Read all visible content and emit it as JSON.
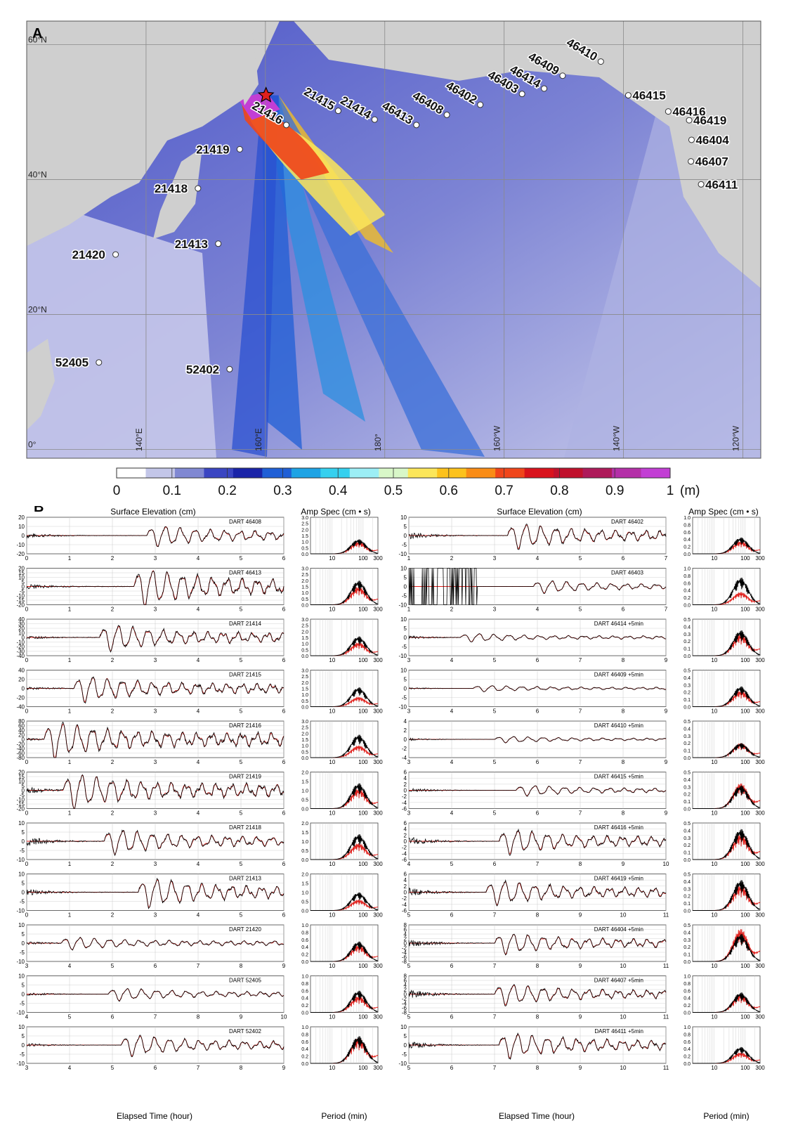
{
  "map": {
    "panel_label": "A",
    "lat_labels": [
      "60°N",
      "40°N",
      "20°N",
      "0°"
    ],
    "lon_labels": [
      "140°E",
      "160°E",
      "180°",
      "160°W",
      "140°W",
      "120°W"
    ],
    "stations": [
      {
        "id": "21415",
        "lon": 172.2,
        "lat": 50.2
      },
      {
        "id": "21414",
        "lon": 178.3,
        "lat": 48.9
      },
      {
        "id": "46413",
        "lon": -174.7,
        "lat": 48.1
      },
      {
        "id": "46408",
        "lon": -169.6,
        "lat": 49.6
      },
      {
        "id": "46402",
        "lon": -164.0,
        "lat": 51.1
      },
      {
        "id": "46403",
        "lon": -157.0,
        "lat": 52.7
      },
      {
        "id": "46414",
        "lon": -153.3,
        "lat": 53.5
      },
      {
        "id": "46409",
        "lon": -150.2,
        "lat": 55.4
      },
      {
        "id": "46410",
        "lon": -143.8,
        "lat": 57.5
      },
      {
        "id": "46415",
        "lon": -139.2,
        "lat": 52.5
      },
      {
        "id": "46416",
        "lon": -132.5,
        "lat": 50.1
      },
      {
        "id": "46419",
        "lon": -129.0,
        "lat": 48.8
      },
      {
        "id": "46404",
        "lon": -128.6,
        "lat": 45.9
      },
      {
        "id": "46407",
        "lon": -128.7,
        "lat": 42.7
      },
      {
        "id": "46411",
        "lon": -127.0,
        "lat": 39.3
      },
      {
        "id": "21416",
        "lon": 163.5,
        "lat": 48.1
      },
      {
        "id": "21419",
        "lon": 155.7,
        "lat": 44.5
      },
      {
        "id": "21418",
        "lon": 148.7,
        "lat": 38.7
      },
      {
        "id": "21413",
        "lon": 152.1,
        "lat": 30.5
      },
      {
        "id": "21420",
        "lon": 134.9,
        "lat": 28.9
      },
      {
        "id": "52405",
        "lon": 132.1,
        "lat": 12.9
      },
      {
        "id": "52402",
        "lon": 154.0,
        "lat": 11.9
      }
    ],
    "epicenter": {
      "lon": 160.1,
      "lat": 52.5,
      "label": "star-epicenter"
    },
    "colorbar": {
      "ticks": [
        "0",
        "0.1",
        "0.2",
        "0.3",
        "0.4",
        "0.5",
        "0.6",
        "0.7",
        "0.8",
        "0.9",
        "1"
      ],
      "unit": "(m)",
      "colors": [
        "#ffffff",
        "#c3c6e8",
        "#8088d2",
        "#3a45c2",
        "#1a24a8",
        "#1f5fd6",
        "#1ea3e4",
        "#35d0ef",
        "#9ceef5",
        "#d8f7c8",
        "#fbe65a",
        "#fcc21c",
        "#f98c16",
        "#f0451a",
        "#d9121c",
        "#c0102c",
        "#ae1a5a",
        "#b42fa8",
        "#c23ed4"
      ]
    }
  },
  "panel_b": {
    "label": "B",
    "headers": {
      "surface": "Surface Elevation (cm)",
      "ampspec": "Amp Spec (cm • s)",
      "xlabel_time": "Elapsed Time (hour)",
      "xlabel_period": "Period (min)"
    }
  },
  "chart_data": [
    {
      "type": "line",
      "column": "left",
      "station": "DART 46408",
      "xlim": [
        0,
        6
      ],
      "xticks": [
        0,
        1,
        2,
        3,
        4,
        5,
        6
      ],
      "ylim": [
        -20,
        20
      ],
      "yticks": [
        -20,
        -10,
        0,
        10,
        20
      ],
      "onset": 2.8,
      "amp": 10,
      "noise": 3,
      "arrival": 2.75,
      "spec": {
        "ylim": [
          0,
          3.0
        ],
        "yticks": [
          "0.0",
          "0.5",
          "1.0",
          "1.5",
          "2.0",
          "2.5",
          "3.0"
        ],
        "peak_obs": 1.2,
        "peak_model": 1.0
      }
    },
    {
      "type": "line",
      "column": "left",
      "station": "DART 46413",
      "xlim": [
        0,
        6
      ],
      "xticks": [
        0,
        1,
        2,
        3,
        4,
        5,
        6
      ],
      "ylim": [
        -20,
        20
      ],
      "yticks": [
        -20,
        -15,
        -10,
        -5,
        0,
        5,
        10,
        15,
        20
      ],
      "onset": 2.5,
      "amp": 18,
      "noise": 3,
      "arrival": 2.45,
      "spec": {
        "ylim": [
          0,
          3.0
        ],
        "yticks": [
          "0.0",
          "0.5",
          "1.0",
          "1.5",
          "2.0",
          "2.5",
          "3.0"
        ],
        "peak_obs": 2.0,
        "peak_model": 1.5
      }
    },
    {
      "type": "line",
      "column": "left",
      "station": "DART 21414",
      "xlim": [
        0,
        6
      ],
      "xticks": [
        0,
        1,
        2,
        3,
        4,
        5,
        6
      ],
      "ylim": [
        -40,
        40
      ],
      "yticks": [
        -40,
        -30,
        -20,
        -10,
        0,
        10,
        20,
        30,
        40
      ],
      "onset": 1.7,
      "amp": 25,
      "noise": 4,
      "arrival": 1.65,
      "spec": {
        "ylim": [
          0,
          3.0
        ],
        "yticks": [
          "0.0",
          "0.5",
          "1.0",
          "1.5",
          "2.0",
          "2.5",
          "3.0"
        ],
        "peak_obs": 1.6,
        "peak_model": 1.1
      }
    },
    {
      "type": "line",
      "column": "left",
      "station": "DART 21415",
      "xlim": [
        0,
        6
      ],
      "xticks": [
        0,
        1,
        2,
        3,
        4,
        5,
        6
      ],
      "ylim": [
        -40,
        40
      ],
      "yticks": [
        -40,
        -20,
        0,
        20,
        40
      ],
      "onset": 1.1,
      "amp": 25,
      "noise": 4,
      "arrival": 1.05,
      "spec": {
        "ylim": [
          0,
          3.0
        ],
        "yticks": [
          "0.0",
          "0.5",
          "1.0",
          "1.5",
          "2.0",
          "2.5",
          "3.0"
        ],
        "peak_obs": 1.6,
        "peak_model": 0.8
      }
    },
    {
      "type": "line",
      "column": "left",
      "station": "DART 21416",
      "xlim": [
        0,
        6
      ],
      "xticks": [
        0,
        1,
        2,
        3,
        4,
        5,
        6
      ],
      "ylim": [
        -80,
        80
      ],
      "yticks": [
        -80,
        -60,
        -40,
        -20,
        0,
        20,
        40,
        60,
        80
      ],
      "onset": 0.4,
      "amp": 70,
      "noise": 5,
      "arrival": 0.35,
      "spec": {
        "ylim": [
          0,
          3.0
        ],
        "yticks": [
          "0.0",
          "0.5",
          "1.0",
          "1.5",
          "2.0",
          "2.5",
          "3.0"
        ],
        "peak_obs": 1.9,
        "peak_model": 1.0
      }
    },
    {
      "type": "line",
      "column": "left",
      "station": "DART 21419",
      "xlim": [
        0,
        6
      ],
      "xticks": [
        0,
        1,
        2,
        3,
        4,
        5,
        6
      ],
      "ylim": [
        -20,
        20
      ],
      "yticks": [
        -20,
        -15,
        -10,
        -5,
        0,
        5,
        10,
        15,
        20
      ],
      "onset": 0.85,
      "amp": 17,
      "noise": 4,
      "arrival": 0.8,
      "spec": {
        "ylim": [
          0,
          2.0
        ],
        "yticks": [
          "0.0",
          "0.5",
          "1.0",
          "1.5",
          "2.0"
        ],
        "peak_obs": 1.4,
        "peak_model": 1.1
      }
    },
    {
      "type": "line",
      "column": "left",
      "station": "DART 21418",
      "xlim": [
        0,
        6
      ],
      "xticks": [
        0,
        1,
        2,
        3,
        4,
        5,
        6
      ],
      "ylim": [
        -10,
        10
      ],
      "yticks": [
        -10,
        -5,
        0,
        5,
        10
      ],
      "onset": 1.8,
      "amp": 6,
      "noise": 3,
      "arrival": 1.75,
      "spec": {
        "ylim": [
          0,
          2.0
        ],
        "yticks": [
          "0.0",
          "0.5",
          "1.0",
          "1.5",
          "2.0"
        ],
        "peak_obs": 1.4,
        "peak_model": 0.9
      }
    },
    {
      "type": "line",
      "column": "left",
      "station": "DART 21413",
      "xlim": [
        0,
        6
      ],
      "xticks": [
        0,
        1,
        2,
        3,
        4,
        5,
        6
      ],
      "ylim": [
        -10,
        10
      ],
      "yticks": [
        -10,
        -5,
        0,
        5,
        10
      ],
      "onset": 2.6,
      "amp": 7,
      "noise": 2,
      "arrival": 2.55,
      "spec": {
        "ylim": [
          0,
          2.0
        ],
        "yticks": [
          "0.0",
          "0.5",
          "1.0",
          "1.5",
          "2.0"
        ],
        "peak_obs": 1.0,
        "peak_model": 0.6
      }
    },
    {
      "type": "line",
      "column": "left",
      "station": "DART 21420",
      "xlim": [
        3,
        9
      ],
      "xticks": [
        3,
        4,
        5,
        6,
        7,
        8,
        9
      ],
      "ylim": [
        -10,
        10
      ],
      "yticks": [
        -10,
        -5,
        0,
        5,
        10
      ],
      "onset": 3.8,
      "amp": 3,
      "noise": 1,
      "arrival": 3.75,
      "spec": {
        "ylim": [
          0,
          1.0
        ],
        "yticks": [
          "0.0",
          "0.2",
          "0.4",
          "0.6",
          "0.8",
          "1.0"
        ],
        "peak_obs": 0.55,
        "peak_model": 0.45
      }
    },
    {
      "type": "line",
      "column": "left",
      "station": "DART 52405",
      "xlim": [
        4,
        10
      ],
      "xticks": [
        4,
        5,
        6,
        7,
        8,
        9,
        10
      ],
      "ylim": [
        -10,
        10
      ],
      "yticks": [
        -10,
        -5,
        0,
        5,
        10
      ],
      "onset": 5.9,
      "amp": 3,
      "noise": 1,
      "arrival": 5.85,
      "spec": {
        "ylim": [
          0,
          1.0
        ],
        "yticks": [
          "0.0",
          "0.2",
          "0.4",
          "0.6",
          "0.8",
          "1.0"
        ],
        "peak_obs": 0.6,
        "peak_model": 0.45
      }
    },
    {
      "type": "line",
      "column": "left",
      "station": "DART 52402",
      "xlim": [
        3,
        9
      ],
      "xticks": [
        3,
        4,
        5,
        6,
        7,
        8,
        9
      ],
      "ylim": [
        -10,
        10
      ],
      "yticks": [
        -10,
        -5,
        0,
        5,
        10
      ],
      "onset": 5.2,
      "amp": 5,
      "noise": 1,
      "arrival": 5.15,
      "spec": {
        "ylim": [
          0,
          1.0
        ],
        "yticks": [
          "0.0",
          "0.2",
          "0.4",
          "0.6",
          "0.8",
          "1.0"
        ],
        "peak_obs": 0.75,
        "peak_model": 0.7
      }
    },
    {
      "type": "line",
      "column": "right",
      "station": "DART 46402",
      "xlim": [
        1,
        7
      ],
      "xticks": [
        1,
        2,
        3,
        4,
        5,
        6,
        7
      ],
      "ylim": [
        -10,
        10
      ],
      "yticks": [
        -10,
        -5,
        0,
        5,
        10
      ],
      "onset": 3.3,
      "amp": 6,
      "noise": 2,
      "arrival": 3.25,
      "spec": {
        "ylim": [
          0,
          1.0
        ],
        "yticks": [
          "0.0",
          "0.2",
          "0.4",
          "0.6",
          "0.8",
          "1.0"
        ],
        "peak_obs": 0.45,
        "peak_model": 0.35
      }
    },
    {
      "type": "line",
      "column": "right",
      "station": "DART 46403",
      "xlim": [
        1,
        7
      ],
      "xticks": [
        1,
        2,
        3,
        4,
        5,
        6,
        7
      ],
      "ylim": [
        -10,
        10
      ],
      "yticks": [
        -10,
        -5,
        0,
        5,
        10
      ],
      "onset": 3.9,
      "amp": 3,
      "noise": 0,
      "arrival": 3.85,
      "bad_start": 2.6,
      "spec": {
        "ylim": [
          0,
          1.0
        ],
        "yticks": [
          "0.0",
          "0.2",
          "0.4",
          "0.6",
          "0.8",
          "1.0"
        ],
        "peak_obs": 0.75,
        "peak_model": 0.35
      }
    },
    {
      "type": "line",
      "column": "right",
      "station": "DART 46414 +5min",
      "xlim": [
        3,
        9
      ],
      "xticks": [
        3,
        4,
        5,
        6,
        7,
        8,
        9
      ],
      "ylim": [
        -10,
        10
      ],
      "yticks": [
        -10,
        -5,
        0,
        5,
        10
      ],
      "onset": 4.2,
      "amp": 2,
      "noise": 1,
      "arrival": 4.15,
      "spec": {
        "ylim": [
          0,
          0.5
        ],
        "yticks": [
          "0.0",
          "0.1",
          "0.2",
          "0.3",
          "0.4",
          "0.5"
        ],
        "peak_obs": 0.35,
        "peak_model": 0.3
      }
    },
    {
      "type": "line",
      "column": "right",
      "station": "DART 46409 +5min",
      "xlim": [
        3,
        9
      ],
      "xticks": [
        3,
        4,
        5,
        6,
        7,
        8,
        9
      ],
      "ylim": [
        -10,
        10
      ],
      "yticks": [
        -10,
        -5,
        0,
        5,
        10
      ],
      "onset": 4.5,
      "amp": 1.5,
      "noise": 0.5,
      "arrival": 4.45,
      "spec": {
        "ylim": [
          0,
          0.5
        ],
        "yticks": [
          "0.0",
          "0.1",
          "0.2",
          "0.3",
          "0.4",
          "0.5"
        ],
        "peak_obs": 0.28,
        "peak_model": 0.22
      }
    },
    {
      "type": "line",
      "column": "right",
      "station": "DART 46410 +5min",
      "xlim": [
        3,
        9
      ],
      "xticks": [
        3,
        4,
        5,
        6,
        7,
        8,
        9
      ],
      "ylim": [
        -4,
        4
      ],
      "yticks": [
        -4,
        -2,
        0,
        2,
        4
      ],
      "onset": 5.0,
      "amp": 0.6,
      "noise": 0.3,
      "arrival": 4.95,
      "spec": {
        "ylim": [
          0,
          0.5
        ],
        "yticks": [
          "0.0",
          "0.1",
          "0.2",
          "0.3",
          "0.4",
          "0.5"
        ],
        "peak_obs": 0.2,
        "peak_model": 0.2
      }
    },
    {
      "type": "line",
      "column": "right",
      "station": "DART 46415 +5min",
      "xlim": [
        3,
        9
      ],
      "xticks": [
        3,
        4,
        5,
        6,
        7,
        8,
        9
      ],
      "ylim": [
        -6,
        6
      ],
      "yticks": [
        -6,
        -4,
        -2,
        0,
        2,
        4,
        6
      ],
      "onset": 5.5,
      "amp": 1.5,
      "noise": 0.8,
      "arrival": 5.45,
      "spec": {
        "ylim": [
          0,
          0.5
        ],
        "yticks": [
          "0.0",
          "0.1",
          "0.2",
          "0.3",
          "0.4",
          "0.5"
        ],
        "peak_obs": 0.32,
        "peak_model": 0.35
      }
    },
    {
      "type": "line",
      "column": "right",
      "station": "DART 46416 +5min",
      "xlim": [
        4,
        10
      ],
      "xticks": [
        4,
        5,
        6,
        7,
        8,
        9,
        10
      ],
      "ylim": [
        -6,
        6
      ],
      "yticks": [
        -6,
        -4,
        -2,
        0,
        2,
        4,
        6
      ],
      "onset": 6.1,
      "amp": 3.5,
      "noise": 1.5,
      "arrival": 6.05,
      "spec": {
        "ylim": [
          0,
          0.5
        ],
        "yticks": [
          "0.0",
          "0.1",
          "0.2",
          "0.3",
          "0.4",
          "0.5"
        ],
        "peak_obs": 0.42,
        "peak_model": 0.35
      }
    },
    {
      "type": "line",
      "column": "right",
      "station": "DART 46419 +5min",
      "xlim": [
        5,
        11
      ],
      "xticks": [
        5,
        6,
        7,
        8,
        9,
        10,
        11
      ],
      "ylim": [
        -6,
        6
      ],
      "yticks": [
        -6,
        -4,
        -2,
        0,
        2,
        4,
        6
      ],
      "onset": 6.8,
      "amp": 3.5,
      "noise": 1.5,
      "arrival": 6.75,
      "spec": {
        "ylim": [
          0,
          0.5
        ],
        "yticks": [
          "0.0",
          "0.1",
          "0.2",
          "0.3",
          "0.4",
          "0.5"
        ],
        "peak_obs": 0.42,
        "peak_model": 0.35
      }
    },
    {
      "type": "line",
      "column": "right",
      "station": "DART 46404 +5min",
      "xlim": [
        5,
        11
      ],
      "xticks": [
        5,
        6,
        7,
        8,
        9,
        10,
        11
      ],
      "ylim": [
        -8,
        8
      ],
      "yticks": [
        -8,
        -6,
        -4,
        -2,
        0,
        2,
        4,
        6,
        8
      ],
      "onset": 7.0,
      "amp": 4,
      "noise": 2,
      "arrival": 6.95,
      "spec": {
        "ylim": [
          0,
          0.5
        ],
        "yticks": [
          "0.0",
          "0.1",
          "0.2",
          "0.3",
          "0.4",
          "0.5"
        ],
        "peak_obs": 0.38,
        "peak_model": 0.45
      }
    },
    {
      "type": "line",
      "column": "right",
      "station": "DART 46407 +5min",
      "xlim": [
        5,
        11
      ],
      "xticks": [
        5,
        6,
        7,
        8,
        9,
        10,
        11
      ],
      "ylim": [
        -8,
        8
      ],
      "yticks": [
        -8,
        -6,
        -4,
        -2,
        0,
        2,
        4,
        6,
        8
      ],
      "onset": 7.0,
      "amp": 4,
      "noise": 2,
      "arrival": 6.95,
      "spec": {
        "ylim": [
          0,
          1.0
        ],
        "yticks": [
          "0.0",
          "0.2",
          "0.4",
          "0.6",
          "0.8",
          "1.0"
        ],
        "peak_obs": 0.55,
        "peak_model": 0.5
      }
    },
    {
      "type": "line",
      "column": "right",
      "station": "DART 46411 +5min",
      "xlim": [
        5,
        11
      ],
      "xticks": [
        5,
        6,
        7,
        8,
        9,
        10,
        11
      ],
      "ylim": [
        -10,
        10
      ],
      "yticks": [
        -10,
        -5,
        0,
        5,
        10
      ],
      "onset": 7.1,
      "amp": 6,
      "noise": 2,
      "arrival": 7.05,
      "spec": {
        "ylim": [
          0,
          1.0
        ],
        "yticks": [
          "0.0",
          "0.2",
          "0.4",
          "0.6",
          "0.8",
          "1.0"
        ],
        "peak_obs": 0.45,
        "peak_model": 0.3
      }
    }
  ],
  "spectrum_x_ticks": [
    "10",
    "100",
    "300"
  ],
  "colors": {
    "observed": "#000000",
    "model": "#e0201c",
    "grid": "#c8c8c8",
    "ocean_deep": "#9aa0dc",
    "land": "#c8c8c8"
  }
}
